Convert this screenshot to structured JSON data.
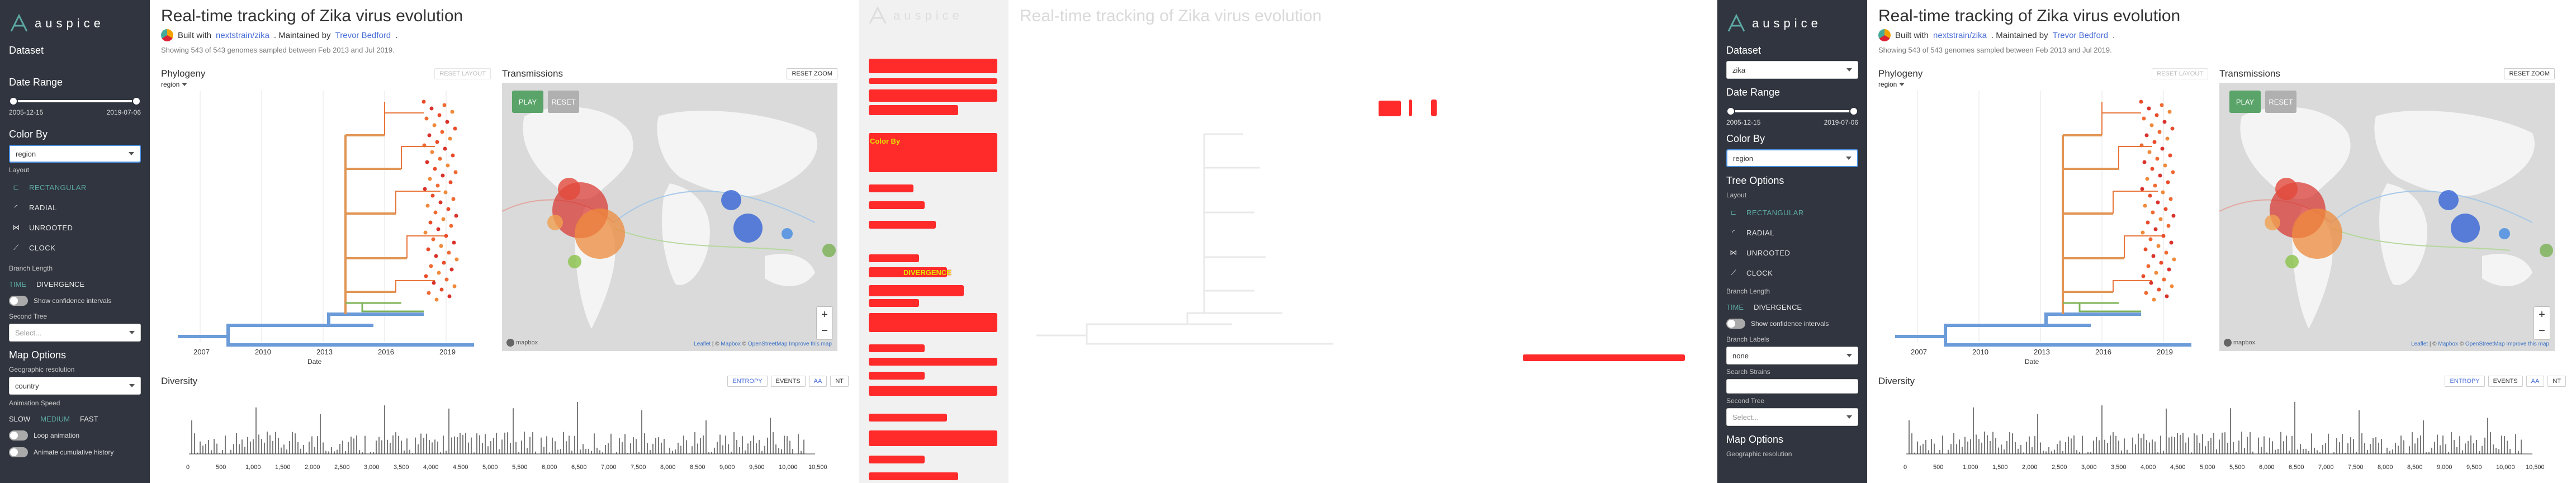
{
  "app": {
    "brand": "auspice"
  },
  "header": {
    "title": "Real-time tracking of Zika virus evolution",
    "built_with": "Built with",
    "built_link": "nextstrain/zika",
    "maintained": ". Maintained by",
    "maintainer": "Trevor Bedford",
    "period": ".",
    "count": "Showing 543 of 543 genomes sampled between Feb 2013 and Jul 2019."
  },
  "sidebar": {
    "dataset_label": "Dataset",
    "dataset_value": "zika",
    "date_range_label": "Date Range",
    "date_start": "2005-12-15",
    "date_end": "2019-07-06",
    "color_by_label": "Color By",
    "color_by_value": "region",
    "tree_options_label": "Tree Options",
    "layout_label": "Layout",
    "layouts": [
      "RECTANGULAR",
      "RADIAL",
      "UNROOTED",
      "CLOCK"
    ],
    "branch_length_label": "Branch Length",
    "branch_time": "TIME",
    "branch_divergence": "DIVERGENCE",
    "confidence_label": "Show confidence intervals",
    "branch_labels_label": "Branch Labels",
    "branch_labels_value": "none",
    "search_strains_label": "Search Strains",
    "second_tree_label": "Second Tree",
    "second_tree_placeholder": "Select...",
    "map_options_label": "Map Options",
    "geo_res_label": "Geographic resolution",
    "geo_res_value": "country",
    "anim_speed_label": "Animation Speed",
    "speeds": [
      "SLOW",
      "MEDIUM",
      "FAST"
    ],
    "loop_label": "Loop animation",
    "cumulative_label": "Animate cumulative history"
  },
  "phylogeny": {
    "title": "Phylogeny",
    "reset_layout": "RESET LAYOUT",
    "region_select": "region",
    "x_label": "Date",
    "ticks": [
      "2007",
      "2010",
      "2013",
      "2016",
      "2019"
    ]
  },
  "transmissions": {
    "title": "Transmissions",
    "reset_zoom": "RESET ZOOM",
    "play": "PLAY",
    "reset": "RESET",
    "zoom_in": "+",
    "zoom_out": "−",
    "attrib_leaflet": "Leaflet",
    "attrib_sep1": " | © ",
    "attrib_mapbox": "Mapbox",
    "attrib_sep2": " © ",
    "attrib_osm": "OpenStreetMap",
    "attrib_improve": "Improve this map",
    "mapbox_logo": "mapbox"
  },
  "diversity": {
    "title": "Diversity",
    "entropy": "ENTROPY",
    "events": "EVENTS",
    "aa": "AA",
    "nt": "NT",
    "ticks": [
      "0",
      "500",
      "1,000",
      "1,500",
      "2,000",
      "2,500",
      "3,000",
      "3,500",
      "4,000",
      "4,500",
      "5,000",
      "5,500",
      "6,000",
      "6,500",
      "7,000",
      "7,500",
      "8,000",
      "8,500",
      "9,000",
      "9,500",
      "10,000",
      "10,500"
    ]
  },
  "colors": {
    "sidebar_bg": "#30353f",
    "accent": "#5da8a3",
    "link": "#4a6fd6",
    "play": "#5aa469",
    "reset": "#b0b0b0"
  }
}
